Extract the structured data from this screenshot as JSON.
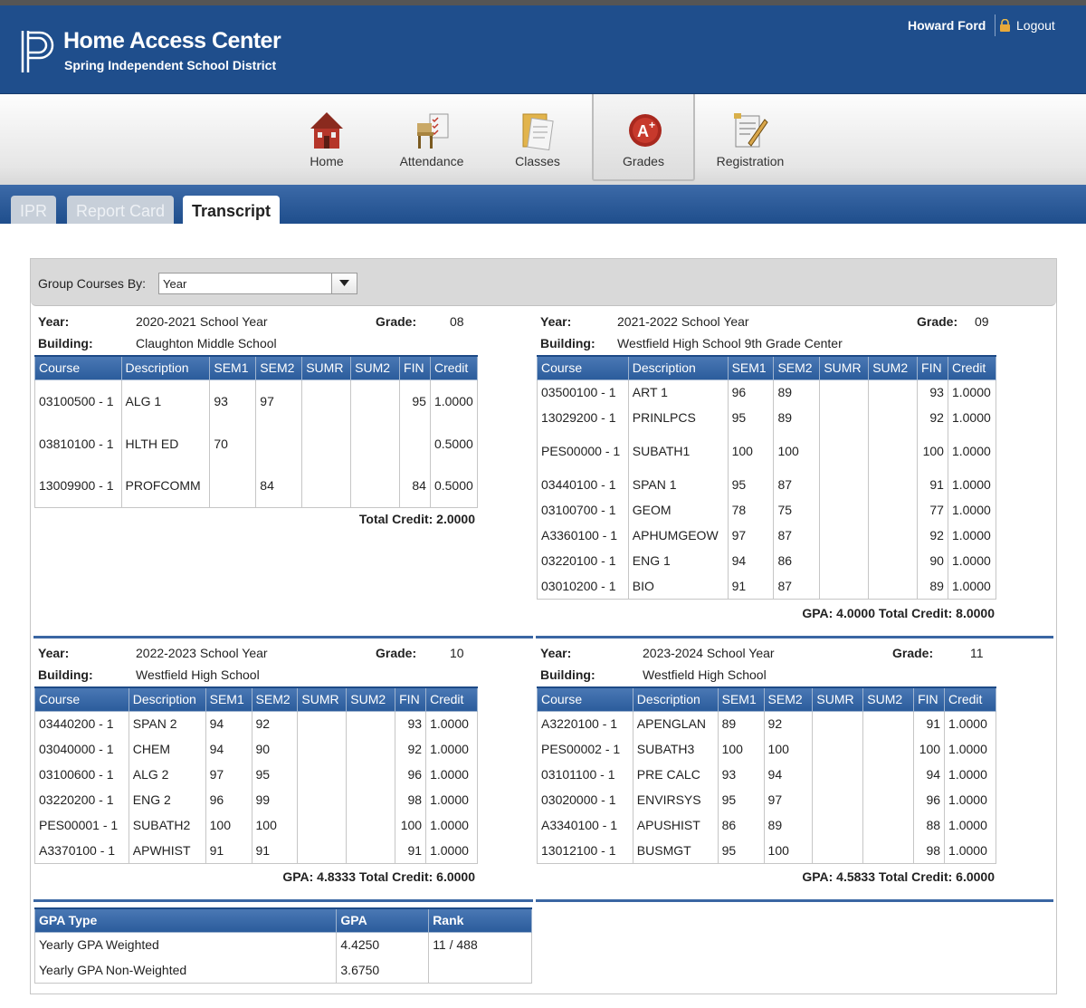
{
  "header": {
    "title": "Home Access Center",
    "district": "Spring Independent School District",
    "user": "Howard Ford",
    "logout": "Logout"
  },
  "nav": [
    {
      "label": "Home",
      "icon": "home-icon"
    },
    {
      "label": "Attendance",
      "icon": "attendance-icon"
    },
    {
      "label": "Classes",
      "icon": "classes-icon"
    },
    {
      "label": "Grades",
      "icon": "grades-icon",
      "active": true
    },
    {
      "label": "Registration",
      "icon": "registration-icon"
    }
  ],
  "tabs": [
    {
      "label": "IPR",
      "active": false
    },
    {
      "label": "Report Card",
      "active": false
    },
    {
      "label": "Transcript",
      "active": true
    }
  ],
  "group": {
    "label": "Group Courses By:",
    "value": "Year"
  },
  "labels": {
    "year": "Year:",
    "building": "Building:",
    "grade": "Grade:",
    "headers": [
      "Course",
      "Description",
      "SEM1",
      "SEM2",
      "SUMR",
      "SUM2",
      "FIN",
      "Credit"
    ]
  },
  "years": [
    {
      "year": "2020-2021 School Year",
      "grade": "08",
      "building": "Claughton Middle School",
      "rows": [
        [
          "03100500 - 1",
          "ALG 1",
          "93",
          "97",
          "",
          "",
          "95",
          "1.0000"
        ],
        [
          "03810100 - 1",
          "HLTH ED",
          "70",
          "",
          "",
          "",
          "",
          "0.5000"
        ],
        [
          "13009900 - 1",
          "PROFCOMM",
          "",
          "84",
          "",
          "",
          "84",
          "0.5000"
        ]
      ],
      "total": "Total Credit: 2.0000"
    },
    {
      "year": "2021-2022 School Year",
      "grade": "09",
      "building": "Westfield High School 9th Grade Center",
      "rows": [
        [
          "03500100 - 1",
          "ART 1",
          "96",
          "89",
          "",
          "",
          "93",
          "1.0000"
        ],
        [
          "13029200 - 1",
          "PRINLPCS",
          "95",
          "89",
          "",
          "",
          "92",
          "1.0000"
        ],
        [
          "PES00000 - 1",
          "SUBATH1",
          "100",
          "100",
          "",
          "",
          "100",
          "1.0000"
        ],
        [
          "03440100 - 1",
          "SPAN 1",
          "95",
          "87",
          "",
          "",
          "91",
          "1.0000"
        ],
        [
          "03100700 - 1",
          "GEOM",
          "78",
          "75",
          "",
          "",
          "77",
          "1.0000"
        ],
        [
          "A3360100 - 1",
          "APHUMGEOW",
          "97",
          "87",
          "",
          "",
          "92",
          "1.0000"
        ],
        [
          "03220100 - 1",
          "ENG 1",
          "94",
          "86",
          "",
          "",
          "90",
          "1.0000"
        ],
        [
          "03010200 - 1",
          "BIO",
          "91",
          "87",
          "",
          "",
          "89",
          "1.0000"
        ]
      ],
      "total": "GPA: 4.0000 Total Credit: 8.0000"
    },
    {
      "year": "2022-2023 School Year",
      "grade": "10",
      "building": "Westfield High School",
      "rows": [
        [
          "03440200 - 1",
          "SPAN 2",
          "94",
          "92",
          "",
          "",
          "93",
          "1.0000"
        ],
        [
          "03040000 - 1",
          "CHEM",
          "94",
          "90",
          "",
          "",
          "92",
          "1.0000"
        ],
        [
          "03100600 - 1",
          "ALG 2",
          "97",
          "95",
          "",
          "",
          "96",
          "1.0000"
        ],
        [
          "03220200 - 1",
          "ENG 2",
          "96",
          "99",
          "",
          "",
          "98",
          "1.0000"
        ],
        [
          "PES00001 - 1",
          "SUBATH2",
          "100",
          "100",
          "",
          "",
          "100",
          "1.0000"
        ],
        [
          "A3370100 - 1",
          "APWHIST",
          "91",
          "91",
          "",
          "",
          "91",
          "1.0000"
        ]
      ],
      "total": "GPA: 4.8333 Total Credit: 6.0000"
    },
    {
      "year": "2023-2024 School Year",
      "grade": "11",
      "building": "Westfield High School",
      "rows": [
        [
          "A3220100 - 1",
          "APENGLAN",
          "89",
          "92",
          "",
          "",
          "91",
          "1.0000"
        ],
        [
          "PES00002 - 1",
          "SUBATH3",
          "100",
          "100",
          "",
          "",
          "100",
          "1.0000"
        ],
        [
          "03101100 - 1",
          "PRE CALC",
          "93",
          "94",
          "",
          "",
          "94",
          "1.0000"
        ],
        [
          "03020000 - 1",
          "ENVIRSYS",
          "95",
          "97",
          "",
          "",
          "96",
          "1.0000"
        ],
        [
          "A3340100 - 1",
          "APUSHIST",
          "86",
          "89",
          "",
          "",
          "88",
          "1.0000"
        ],
        [
          "13012100 - 1",
          "BUSMGT",
          "95",
          "100",
          "",
          "",
          "98",
          "1.0000"
        ]
      ],
      "total": "GPA: 4.5833 Total Credit: 6.0000"
    }
  ],
  "gpa": {
    "headers": [
      "GPA Type",
      "GPA",
      "Rank"
    ],
    "rows": [
      [
        "Yearly GPA Weighted",
        "4.4250",
        "11 / 488"
      ],
      [
        "Yearly GPA Non-Weighted",
        "3.6750",
        ""
      ]
    ]
  }
}
